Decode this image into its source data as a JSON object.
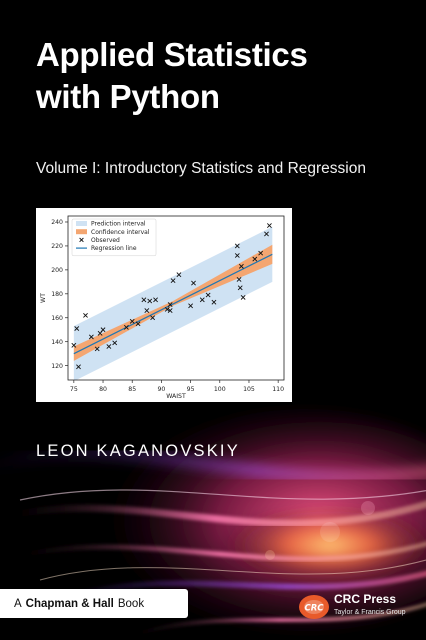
{
  "cover": {
    "title_line1": "Applied Statistics",
    "title_line2": "with Python",
    "subtitle": "Volume I: Introductory Statistics and Regression",
    "author": "LEON KAGANOVSKIY",
    "series": {
      "prefix": "A",
      "brand": "Chapman & Hall",
      "suffix": "Book"
    },
    "publisher": {
      "name": "CRC Press",
      "tagline": "Taylor & Francis Group",
      "logo_letters": "CRC"
    },
    "colors": {
      "background": "#000000",
      "glow_pink": "#e0306a",
      "glow_orange": "#ff8a3a",
      "glow_purple": "#6a2aa8"
    }
  },
  "chart_data": {
    "type": "scatter",
    "xlabel": "WAIST",
    "ylabel": "WT",
    "xlim": [
      74,
      111
    ],
    "ylim": [
      108,
      245
    ],
    "xticks": [
      75,
      80,
      85,
      90,
      95,
      100,
      105,
      110
    ],
    "yticks": [
      120,
      140,
      160,
      180,
      200,
      220,
      240
    ],
    "legend": {
      "placement": "top-left",
      "entries": [
        "Prediction interval",
        "Confidence interval",
        "Observed",
        "Regression line"
      ]
    },
    "regression_line": {
      "x": [
        75,
        109
      ],
      "y": [
        130,
        213
      ]
    },
    "confidence_band": {
      "x": [
        75,
        92,
        109
      ],
      "lower": [
        124,
        170,
        205
      ],
      "upper": [
        136,
        174,
        221
      ]
    },
    "prediction_band": {
      "x": [
        75,
        109
      ],
      "lower": [
        107,
        190
      ],
      "upper": [
        153,
        236
      ]
    },
    "observed": {
      "x": [
        75,
        75.5,
        75.8,
        77,
        78,
        79,
        79.5,
        80,
        81,
        82,
        84,
        85,
        86,
        87,
        87.5,
        88,
        88.5,
        89,
        91,
        91.5,
        91.5,
        92,
        93,
        95,
        95.5,
        97,
        98,
        99,
        103,
        103,
        103.3,
        103.5,
        103.7,
        104,
        106,
        107,
        108,
        108.5
      ],
      "y": [
        137,
        151,
        119,
        162,
        144,
        134,
        147,
        150,
        136,
        139,
        152,
        157,
        155,
        175,
        166,
        174,
        160,
        175,
        167,
        166,
        171,
        191,
        196,
        170,
        189,
        175,
        179,
        173,
        220,
        212,
        192,
        185,
        203,
        177,
        209,
        214,
        230,
        237
      ]
    }
  }
}
